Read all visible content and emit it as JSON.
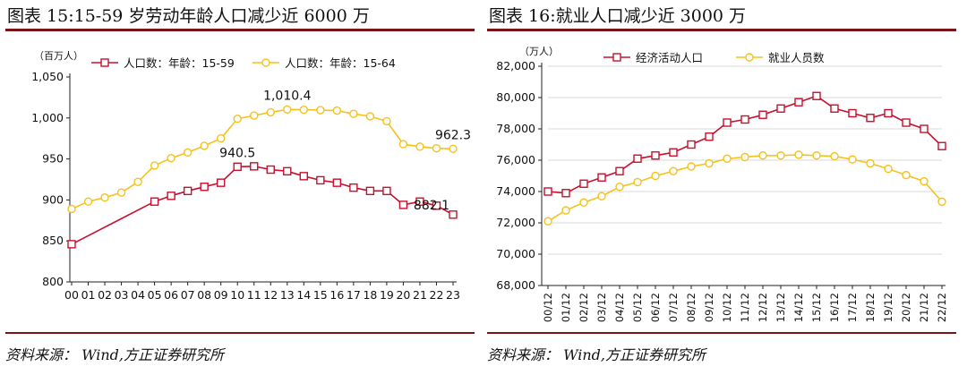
{
  "colors": {
    "red": "#c8102e",
    "yellow": "#f5c21b",
    "rule": "#7a1418"
  },
  "footer": {
    "source": "资料来源： Wind,方正证券研究所"
  },
  "chart_data": [
    {
      "type": "line",
      "title": "图表 15:15-59 岁劳动年龄人口减少近 6000 万",
      "ylabel": "（百万人）",
      "ylim": [
        800,
        1050
      ],
      "yticks": [
        "800",
        "850",
        "900",
        "950",
        "1,000",
        "1,050"
      ],
      "grid": false,
      "legend": "top",
      "categories": [
        "00",
        "01",
        "02",
        "03",
        "04",
        "05",
        "06",
        "07",
        "08",
        "09",
        "10",
        "11",
        "12",
        "13",
        "14",
        "15",
        "16",
        "17",
        "18",
        "19",
        "20",
        "21",
        "22",
        "23"
      ],
      "series": [
        {
          "name": "人口数：年龄：15-59",
          "color": "#c8102e",
          "marker": "square",
          "values": [
            846,
            null,
            null,
            null,
            null,
            898,
            905,
            911,
            916,
            921,
            940.5,
            941,
            937,
            935,
            929,
            924,
            921,
            915,
            911,
            911,
            894,
            898,
            893,
            882.1
          ]
        },
        {
          "name": "人口数：年龄：15-64",
          "color": "#f5c21b",
          "marker": "circle",
          "values": [
            889,
            898,
            903,
            909,
            922,
            942,
            951,
            958,
            966,
            975,
            999,
            1003,
            1007,
            1010.4,
            1010,
            1009.5,
            1009,
            1005,
            1002,
            996,
            968,
            965,
            963,
            962.3
          ]
        }
      ],
      "annotations": [
        {
          "text": "940.5",
          "series": 0,
          "index": 10,
          "pos": "above"
        },
        {
          "text": "882.1",
          "series": 0,
          "index": 23,
          "pos": "above-left"
        },
        {
          "text": "1,010.4",
          "series": 1,
          "index": 13,
          "pos": "above"
        },
        {
          "text": "962.3",
          "series": 1,
          "index": 23,
          "pos": "above"
        }
      ]
    },
    {
      "type": "line",
      "title": "图表 16:就业人口减少近 3000 万",
      "ylabel": "（万人）",
      "ylim": [
        68000,
        82000
      ],
      "yticks": [
        "68,000",
        "70,000",
        "72,000",
        "74,000",
        "76,000",
        "78,000",
        "80,000",
        "82,000"
      ],
      "grid": true,
      "legend": "top",
      "categories": [
        "00/12",
        "01/12",
        "02/12",
        "03/12",
        "04/12",
        "05/12",
        "06/12",
        "07/12",
        "08/12",
        "09/12",
        "10/12",
        "11/12",
        "12/12",
        "13/12",
        "14/12",
        "15/12",
        "16/12",
        "17/12",
        "18/12",
        "19/12",
        "20/12",
        "21/12",
        "22/12"
      ],
      "series": [
        {
          "name": "经济活动人口",
          "color": "#c8102e",
          "marker": "square",
          "values": [
            74000,
            73900,
            74500,
            74900,
            75300,
            76100,
            76300,
            76500,
            77000,
            77500,
            78400,
            78600,
            78900,
            79300,
            79700,
            80100,
            79300,
            79000,
            78700,
            79000,
            78400,
            78000,
            76900
          ]
        },
        {
          "name": "就业人员数",
          "color": "#f5c21b",
          "marker": "circle",
          "values": [
            72100,
            72800,
            73300,
            73700,
            74300,
            74600,
            75000,
            75300,
            75600,
            75800,
            76100,
            76200,
            76300,
            76300,
            76350,
            76300,
            76250,
            76050,
            75800,
            75450,
            75050,
            74650,
            73350
          ]
        }
      ]
    }
  ]
}
